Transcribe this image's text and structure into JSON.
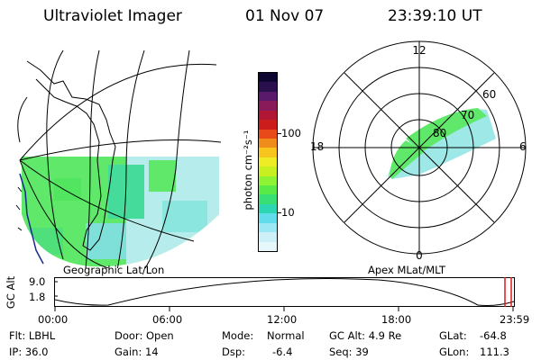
{
  "header": {
    "title": "Ultraviolet Imager",
    "date": "01 Nov 07",
    "time": "23:39:10 UT"
  },
  "colorbar": {
    "unit_label": "photon cm⁻²s⁻¹",
    "ticks": [
      "100",
      "10"
    ],
    "colors": [
      "#0d0630",
      "#2a0f4d",
      "#5a1a6b",
      "#8a1b5a",
      "#b01735",
      "#cc1d1d",
      "#e84a1a",
      "#f08c1c",
      "#f7c51e",
      "#eeec24",
      "#c8f020",
      "#8ef235",
      "#58ea46",
      "#38df75",
      "#2dd6b2",
      "#61dcea",
      "#9be7f3",
      "#cdeff7",
      "#e6f7fb"
    ]
  },
  "map_left": {
    "caption": "Geographic Lat/Lon"
  },
  "map_right": {
    "caption": "Apex MLat/MLT",
    "hour_labels": {
      "top": "12",
      "left": "18",
      "right": "6",
      "bottom": "0"
    },
    "lat_labels": [
      "60",
      "70",
      "80"
    ]
  },
  "timeline": {
    "axis_label": "GC Alt",
    "y_ticks": [
      "9.0",
      "1.8"
    ],
    "x_ticks": [
      "00:00",
      "06:00",
      "12:00",
      "18:00",
      "23:59"
    ],
    "marker_color": "#e01818"
  },
  "footer": {
    "row1": {
      "flt": "Flt: LBHL",
      "door": "Door: Open",
      "mode_label": "Mode:",
      "mode_value": "Normal",
      "gc_alt": "GC Alt: 4.9 Re",
      "glat_label": "GLat:",
      "glat_value": "-64.8"
    },
    "row2": {
      "ip": "IP: 36.0",
      "gain": "Gain: 14",
      "dsp_label": "Dsp:",
      "dsp_value": "-6.4",
      "seq": "Seq: 39",
      "glon_label": "GLon:",
      "glon_value": "111.3"
    }
  }
}
